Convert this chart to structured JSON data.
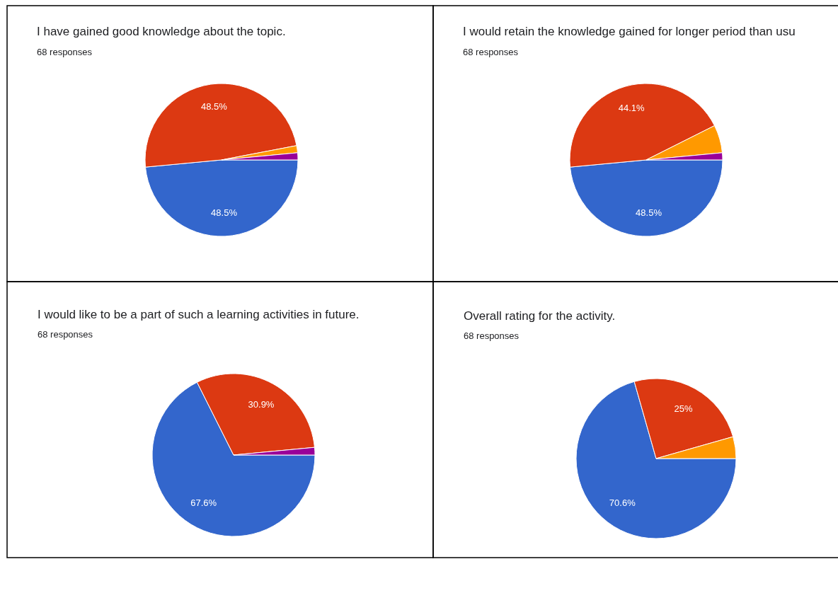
{
  "chart_data": [
    {
      "type": "pie",
      "title": "I have gained good knowledge about the topic.",
      "subtitle": "68 responses",
      "categories": [
        null,
        null,
        null,
        null
      ],
      "values": [
        48.5,
        48.5,
        1.5,
        1.5
      ],
      "colors": [
        "#3366cc",
        "#dc3912",
        "#ff9900",
        "#990099"
      ],
      "value_labels": [
        "48.5%",
        "48.5%",
        null,
        null
      ]
    },
    {
      "type": "pie",
      "title": "I would retain the knowledge gained for longer period than usu",
      "subtitle": "68 responses",
      "categories": [
        null,
        null,
        null,
        null
      ],
      "values": [
        48.5,
        44.1,
        5.9,
        1.5
      ],
      "colors": [
        "#3366cc",
        "#dc3912",
        "#ff9900",
        "#990099"
      ],
      "value_labels": [
        "48.5%",
        "44.1%",
        null,
        null
      ]
    },
    {
      "type": "pie",
      "title": "I would like to be a part of such a learning activities in future.",
      "subtitle": "68 responses",
      "categories": [
        null,
        null,
        null
      ],
      "values": [
        67.6,
        30.9,
        1.5
      ],
      "colors": [
        "#3366cc",
        "#dc3912",
        "#990099"
      ],
      "value_labels": [
        "67.6%",
        "30.9%",
        null
      ]
    },
    {
      "type": "pie",
      "title": "Overall rating for the activity.",
      "subtitle": "68 responses",
      "categories": [
        null,
        null,
        null
      ],
      "values": [
        70.6,
        25,
        4.4
      ],
      "colors": [
        "#3366cc",
        "#dc3912",
        "#ff9900"
      ],
      "value_labels": [
        "70.6%",
        "25%",
        null
      ]
    }
  ]
}
